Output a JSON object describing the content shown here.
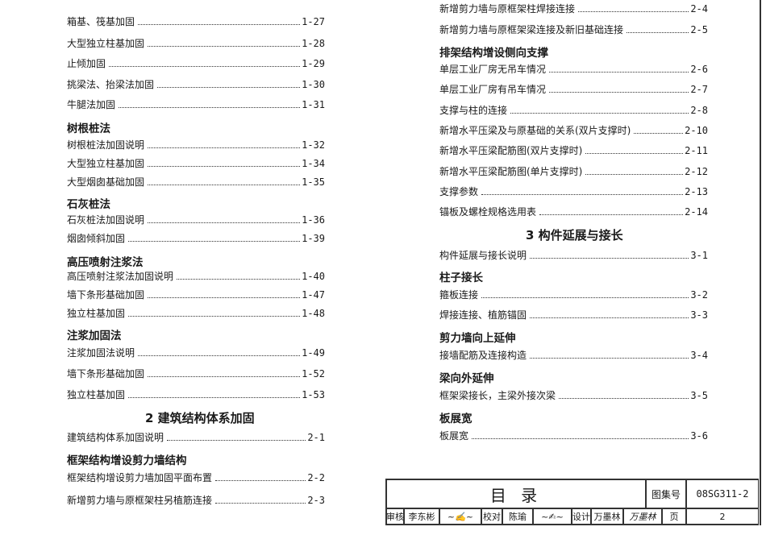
{
  "left": [
    {
      "type": "entry",
      "title": "箱基、筏基加固",
      "page": "1-27"
    },
    {
      "type": "entry",
      "title": "大型独立柱基加固",
      "page": "1-28"
    },
    {
      "type": "entry",
      "title": "止倾加固",
      "page": "1-29"
    },
    {
      "type": "entry",
      "title": "挑梁法、抬梁法加固",
      "page": "1-30"
    },
    {
      "type": "entry",
      "title": "牛腿法加固",
      "page": "1-31"
    },
    {
      "type": "heading",
      "title": "树根桩法"
    },
    {
      "type": "entry",
      "title": "树根桩法加固说明",
      "page": "1-32"
    },
    {
      "type": "entry",
      "title": "大型独立柱基加固",
      "page": "1-34"
    },
    {
      "type": "entry",
      "title": "大型烟囱基础加固",
      "page": "1-35"
    },
    {
      "type": "heading",
      "title": "石灰桩法"
    },
    {
      "type": "entry",
      "title": "石灰桩法加固说明",
      "page": "1-36"
    },
    {
      "type": "entry",
      "title": "烟囱倾斜加固",
      "page": "1-39"
    },
    {
      "type": "heading",
      "title": "高压喷射注浆法"
    },
    {
      "type": "entry",
      "title": "高压喷射注浆法加固说明",
      "page": "1-40"
    },
    {
      "type": "entry",
      "title": "墙下条形基础加固",
      "page": "1-47"
    },
    {
      "type": "entry",
      "title": "独立柱基加固",
      "page": "1-48"
    },
    {
      "type": "heading",
      "title": "注浆加固法"
    },
    {
      "type": "entry",
      "title": "注浆加固法说明",
      "page": "1-49"
    },
    {
      "type": "entry",
      "title": "墙下条形基础加固",
      "page": "1-52"
    },
    {
      "type": "entry",
      "title": "独立柱基加固",
      "page": "1-53"
    },
    {
      "type": "section",
      "title": "2  建筑结构体系加固"
    },
    {
      "type": "entry",
      "title": "建筑结构体系加固说明",
      "page": "2-1"
    },
    {
      "type": "heading",
      "title": "框架结构增设剪力墙结构"
    },
    {
      "type": "entry",
      "title": "框架结构增设剪力墙加固平面布置",
      "page": "2-2"
    },
    {
      "type": "entry",
      "title": "新增剪力墙与原框架柱另植筋连接",
      "page": "2-3"
    }
  ],
  "right": [
    {
      "type": "entry",
      "title": "新增剪力墙与原框架柱焊接连接",
      "page": "2-4"
    },
    {
      "type": "entry",
      "title": "新增剪力墙与原框架梁连接及新旧基础连接",
      "page": "2-5"
    },
    {
      "type": "heading",
      "title": "排架结构增设侧向支撑"
    },
    {
      "type": "entry",
      "title": "单层工业厂房无吊车情况",
      "page": "2-6"
    },
    {
      "type": "entry",
      "title": "单层工业厂房有吊车情况",
      "page": "2-7"
    },
    {
      "type": "entry",
      "title": "支撑与柱的连接",
      "page": "2-8"
    },
    {
      "type": "entry",
      "title": "新增水平压梁及与原基础的关系(双片支撑时)",
      "page": "2-10"
    },
    {
      "type": "entry",
      "title": "新增水平压梁配筋图(双片支撑时)",
      "page": "2-11"
    },
    {
      "type": "entry",
      "title": "新增水平压梁配筋图(单片支撑时)",
      "page": "2-12"
    },
    {
      "type": "entry",
      "title": "支撑参数",
      "page": "2-13"
    },
    {
      "type": "entry",
      "title": "锚板及螺栓规格选用表",
      "page": "2-14"
    },
    {
      "type": "section",
      "title": "3  构件延展与接长"
    },
    {
      "type": "entry",
      "title": "构件延展与接长说明",
      "page": "3-1"
    },
    {
      "type": "heading",
      "title": "柱子接长"
    },
    {
      "type": "entry",
      "title": "箍板连接",
      "page": "3-2"
    },
    {
      "type": "entry",
      "title": "焊接连接、植筋锚固",
      "page": "3-3"
    },
    {
      "type": "heading",
      "title": "剪力墙向上延伸"
    },
    {
      "type": "entry",
      "title": "接墙配筋及连接构造",
      "page": "3-4"
    },
    {
      "type": "heading",
      "title": "梁向外延伸"
    },
    {
      "type": "entry",
      "title": "框架梁接长，主梁外接次梁",
      "page": "3-5"
    },
    {
      "type": "heading",
      "title": "板展宽"
    },
    {
      "type": "entry",
      "title": "板展宽",
      "page": "3-6"
    }
  ],
  "title_block": {
    "title": "目  录",
    "atlas_label": "图集号",
    "atlas_no": "08SG311-2",
    "review_label": "审核",
    "reviewer": "李东彬",
    "reviewer_sig": "李东彬",
    "check_label": "校对",
    "checker": "陈瑜",
    "checker_sig": "陈瑜",
    "design_label": "设计",
    "designer": "万墨林",
    "designer_sig": "万墨林",
    "page_label": "页",
    "page_no": "2"
  }
}
